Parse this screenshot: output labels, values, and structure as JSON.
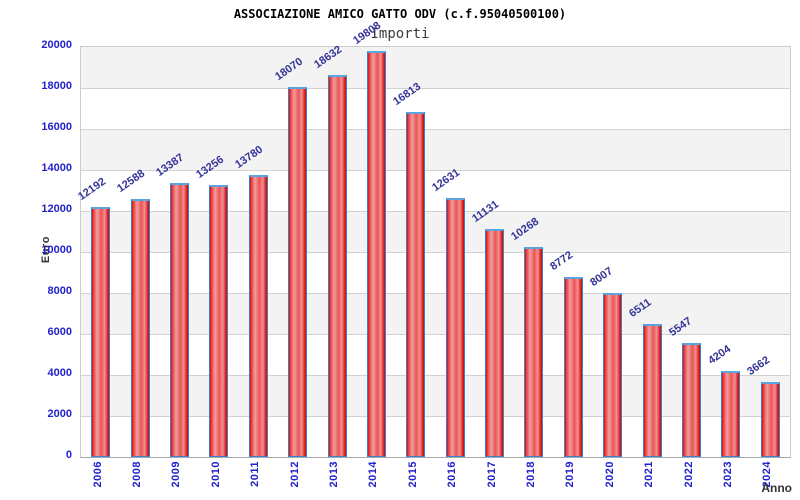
{
  "chart_data": {
    "type": "bar",
    "title": "ASSOCIAZIONE AMICO GATTO ODV (c.f.95040500100)",
    "subtitle": "Importi",
    "xlabel": "Anno",
    "ylabel": "Euro",
    "categories": [
      "2006",
      "2008",
      "2009",
      "2010",
      "2011",
      "2012",
      "2013",
      "2014",
      "2015",
      "2016",
      "2017",
      "2018",
      "2019",
      "2020",
      "2021",
      "2022",
      "2023",
      "2024"
    ],
    "values": [
      12192,
      12588,
      13387,
      13256,
      13780,
      18070,
      18632,
      19808,
      16813,
      12631,
      11131,
      10268,
      8772,
      8007,
      6511,
      5547,
      4204,
      3662
    ],
    "ylim": [
      0,
      20000
    ],
    "ytick_step": 2000,
    "yticks": [
      "0",
      "2000",
      "4000",
      "6000",
      "8000",
      "10000",
      "12000",
      "14000",
      "16000",
      "18000",
      "20000"
    ],
    "grid": true,
    "legend": "none",
    "band_fill": "alternating horizontal bands every 2000",
    "colors": {
      "bar_fill_edge": "#c90f0f",
      "bar_fill_light": "#f29e9e",
      "bar_border": "#3d7fc8",
      "bar_border_top": "#5aa5e0",
      "axis_tick_text": "#2222cc",
      "value_label_text": "#333399",
      "axis_title_text": "#333333",
      "title_text": "#000000",
      "band_gray": "#f3f3f3",
      "gridline": "#d2d2d2"
    }
  }
}
